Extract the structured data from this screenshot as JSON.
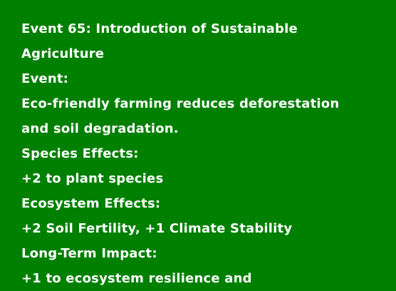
{
  "event": {
    "title_line1": "Event 65: Introduction of Sustainable",
    "title_line2": "Agriculture",
    "event_heading": "Event:",
    "description_line1": "Eco-friendly farming reduces deforestation",
    "description_line2": "and soil degradation.",
    "species_heading": "Species Effects:",
    "species_effect": "+2 to plant species",
    "ecosystem_heading": "Ecosystem Effects:",
    "ecosystem_effect": "+2 Soil Fertility, +1 Climate Stability",
    "longterm_heading": "Long-Term Impact:",
    "longterm_effect_partial": "+1 to ecosystem resilience and"
  },
  "colors": {
    "background": "#008000",
    "text": "#ffffff"
  }
}
